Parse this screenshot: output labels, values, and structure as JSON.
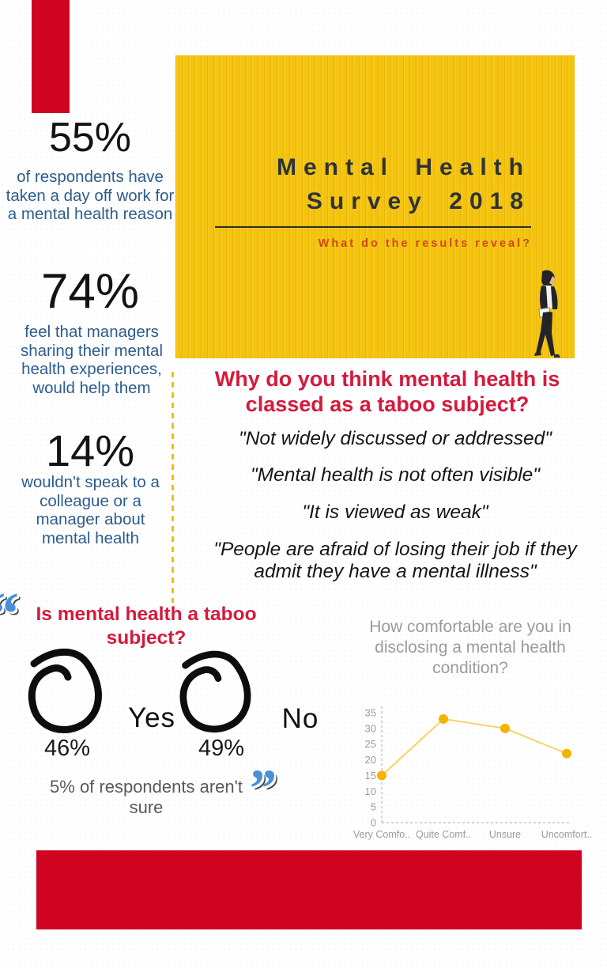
{
  "colors": {
    "red_block": "#d00320",
    "crimson_heading": "#d51a3c",
    "banner_yellow": "#f4c30e",
    "subtitle_orange": "#d2471b",
    "stat_blue": "#2d5c8c",
    "title_dark": "#2e3338",
    "note_gray": "#58595b",
    "chart_gray": "#9b9b9b",
    "quote_icon_blue": "#4a90d9",
    "dashed_divider_yellow": "#f0c011"
  },
  "banner": {
    "title_line1": "Mental Health",
    "title_line2": "Survey 2018",
    "subtitle": "What do the results reveal?"
  },
  "stats": [
    {
      "value": "55%",
      "description": "of respondents have taken a day off work for a mental health reason"
    },
    {
      "value": "74%",
      "description": "feel that managers sharing their mental health experiences, would help them"
    },
    {
      "value": "14%",
      "description": "wouldn't speak to a colleague or a manager about mental health"
    }
  ],
  "taboo_reasons": {
    "heading": "Why do you think mental health is classed as a taboo subject?",
    "quotes": [
      "\"Not widely discussed or addressed\"",
      "\"Mental health is not often visible\"",
      "\"It is viewed as weak\"",
      "\"People are afraid of losing their job if they admit they have a mental illness\""
    ]
  },
  "taboo_poll": {
    "heading": "Is mental health a taboo subject?",
    "options": [
      {
        "label": "Yes",
        "pct": "46%"
      },
      {
        "label": "No",
        "pct": "49%"
      }
    ],
    "note": "5% of respondents aren't sure",
    "open_quote_glyph": "“",
    "close_quote_glyph": "”"
  },
  "chart_data": {
    "type": "line",
    "title": "How comfortable are you in disclosing a mental health condition?",
    "categories": [
      "Very Comfo..",
      "Quite Comf..",
      "Unsure",
      "Uncomfort.."
    ],
    "values": [
      15,
      33,
      30,
      22
    ],
    "ylim": [
      0,
      35
    ],
    "yticks": [
      0,
      5,
      10,
      15,
      20,
      25,
      30,
      35
    ],
    "xlabel": "",
    "ylabel": "",
    "grid": false,
    "axis_style": "dashed",
    "legend": "none",
    "line_color": "#fbd160",
    "marker_color": "#f5b301"
  }
}
